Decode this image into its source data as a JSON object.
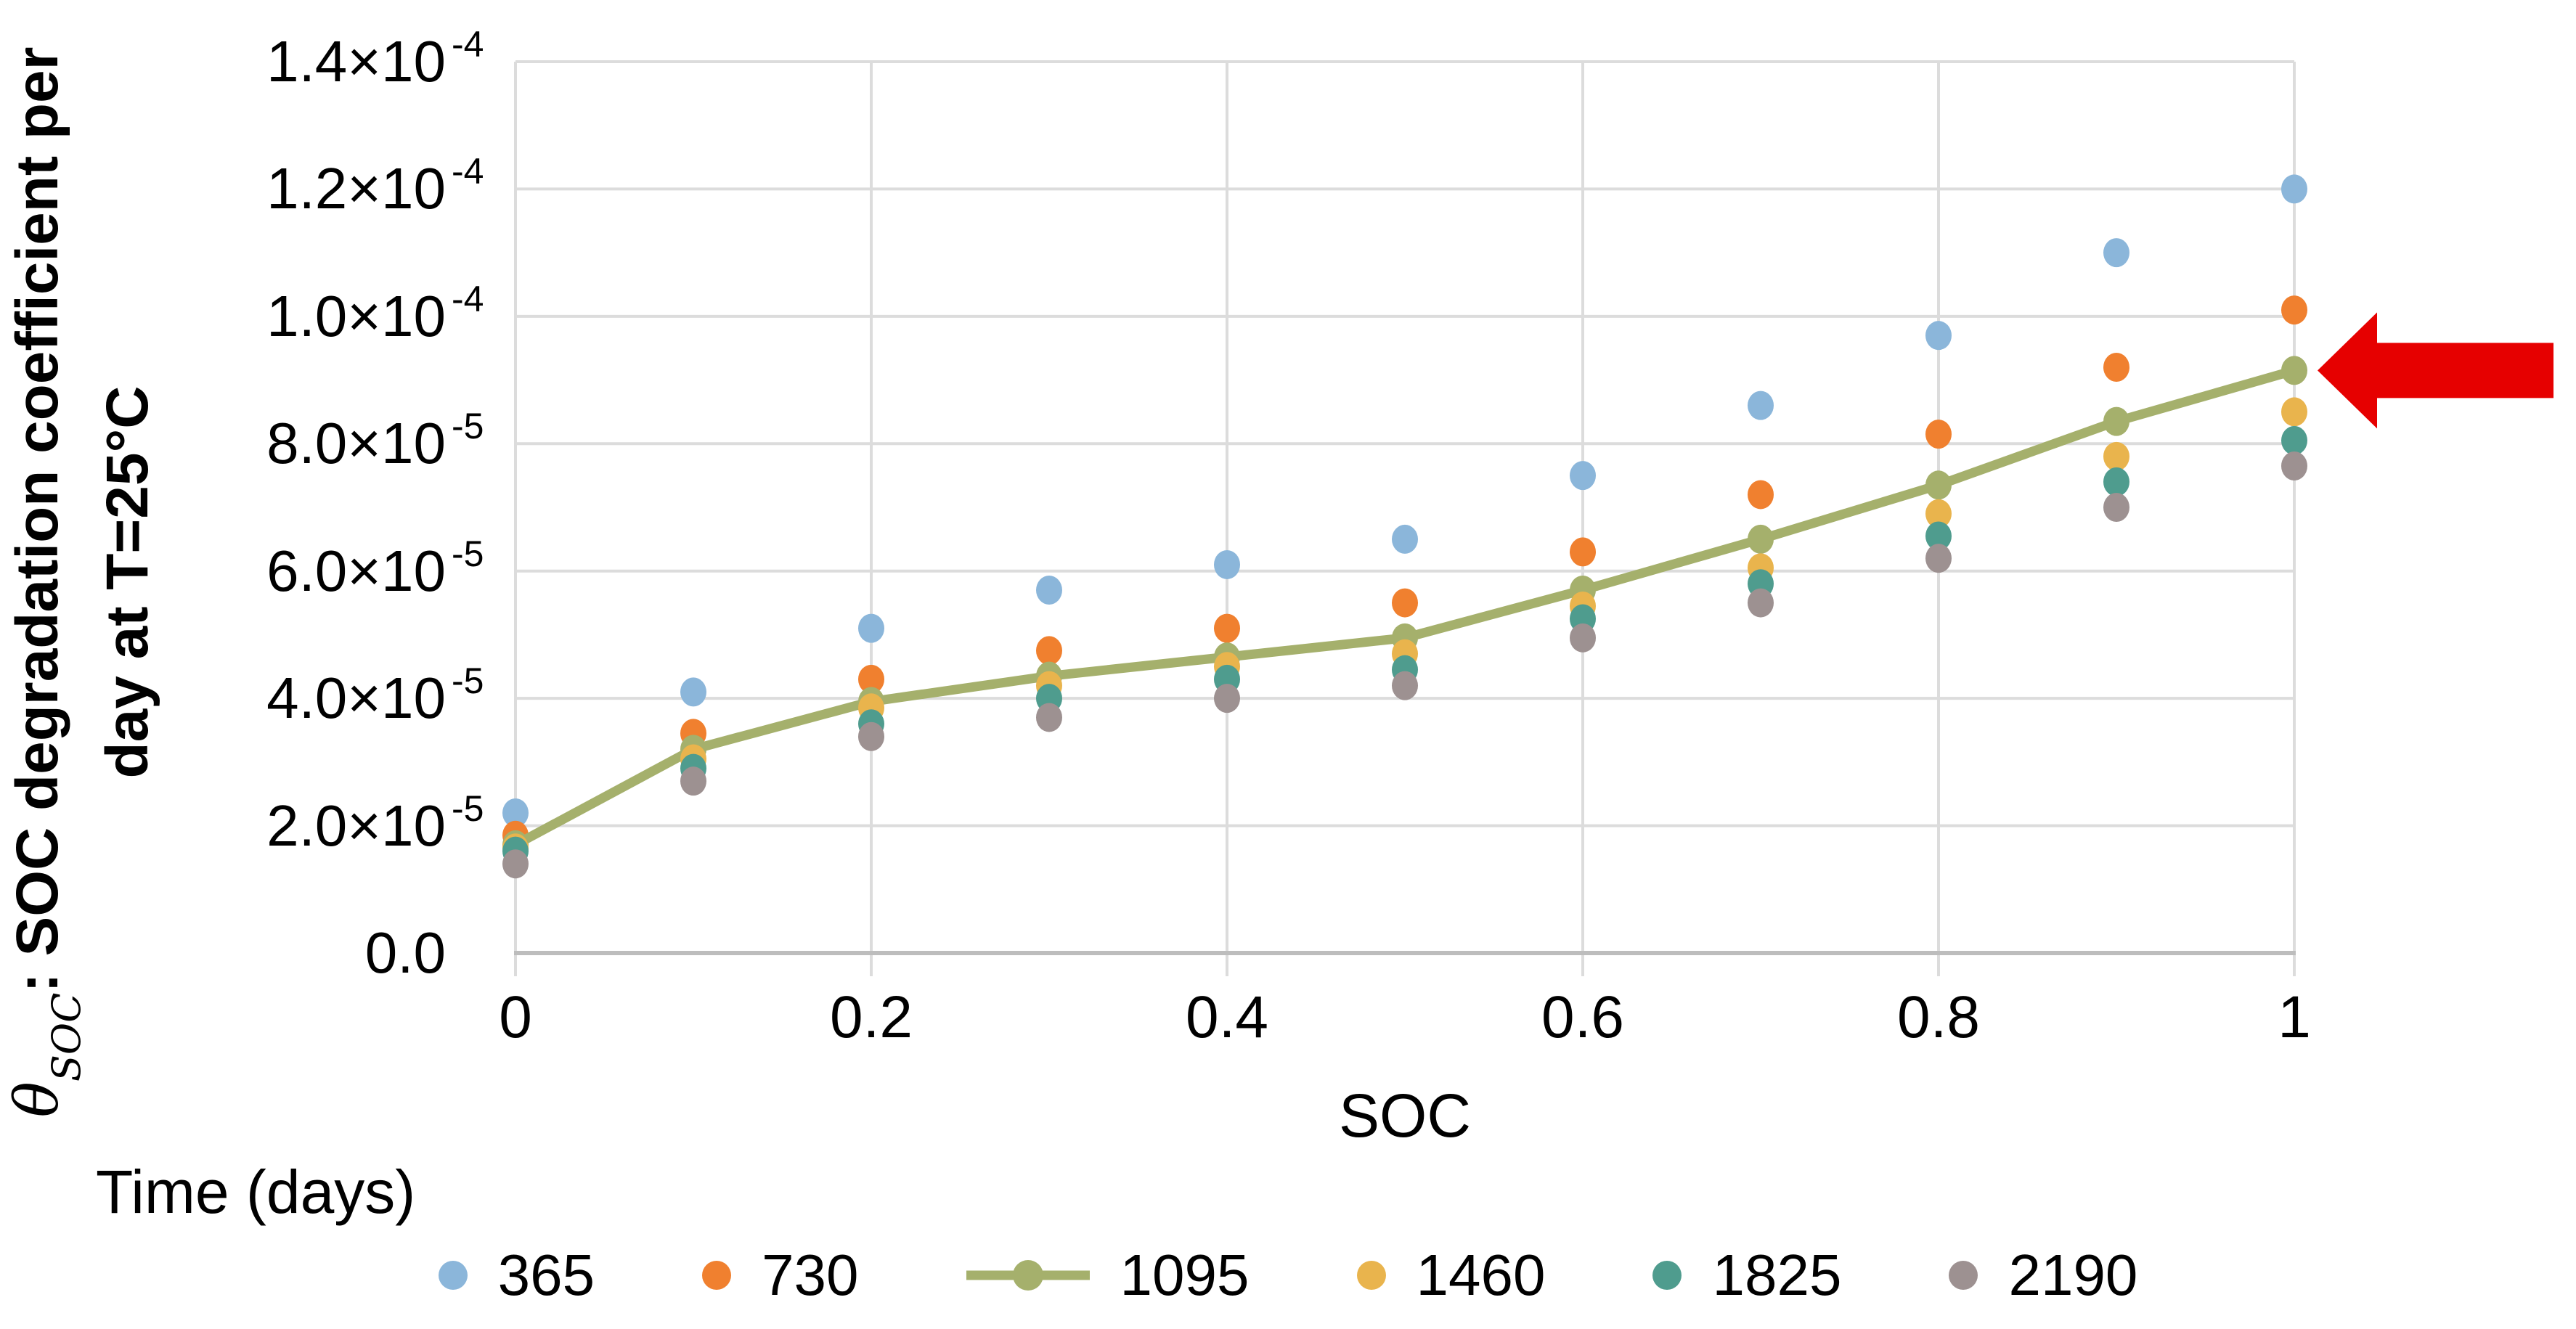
{
  "chart_data": {
    "type": "scatter",
    "title": "",
    "xlabel": "SOC",
    "ylabel": {
      "theta": "θ",
      "theta_sub": "SOC",
      "line1_rest": ": SOC degradation coefficient per",
      "line2": "day at T=25°C"
    },
    "legend_title": "Time (days)",
    "legend_position": "bottom",
    "grid": true,
    "xlim": [
      0,
      1
    ],
    "ylim": [
      0,
      0.00014
    ],
    "x_ticks": [
      {
        "label": "0",
        "value": 0
      },
      {
        "label": "0.2",
        "value": 0.2
      },
      {
        "label": "0.4",
        "value": 0.4
      },
      {
        "label": "0.6",
        "value": 0.6
      },
      {
        "label": "0.8",
        "value": 0.8
      },
      {
        "label": "1",
        "value": 1
      }
    ],
    "y_ticks": [
      {
        "mantissa": "0.0",
        "exp": "",
        "value": 0
      },
      {
        "mantissa": "2.0×10",
        "exp": "-5",
        "value": 2e-05
      },
      {
        "mantissa": "4.0×10",
        "exp": "-5",
        "value": 4e-05
      },
      {
        "mantissa": "6.0×10",
        "exp": "-5",
        "value": 6e-05
      },
      {
        "mantissa": "8.0×10",
        "exp": "-5",
        "value": 8e-05
      },
      {
        "mantissa": "1.0×10",
        "exp": "-4",
        "value": 0.0001
      },
      {
        "mantissa": "1.2×10",
        "exp": "-4",
        "value": 0.00012
      },
      {
        "mantissa": "1.4×10",
        "exp": "-4",
        "value": 0.00014
      }
    ],
    "x": [
      0,
      0.1,
      0.2,
      0.3,
      0.4,
      0.5,
      0.6,
      0.7,
      0.8,
      0.9,
      1
    ],
    "series": [
      {
        "name": "365",
        "color": "#8BB6DA",
        "marker": "dot",
        "line": false,
        "values": [
          2.2e-05,
          4.1e-05,
          5.1e-05,
          5.7e-05,
          6.1e-05,
          6.5e-05,
          7.5e-05,
          8.6e-05,
          9.7e-05,
          0.00011,
          0.00012
        ]
      },
      {
        "name": "730",
        "color": "#F0802F",
        "marker": "dot",
        "line": false,
        "values": [
          1.85e-05,
          3.45e-05,
          4.3e-05,
          4.75e-05,
          5.1e-05,
          5.5e-05,
          6.3e-05,
          7.2e-05,
          8.15e-05,
          9.2e-05,
          0.000101
        ]
      },
      {
        "name": "1095",
        "color": "#A5B06C",
        "marker": "line-dot",
        "line": true,
        "values": [
          1.7e-05,
          3.2e-05,
          3.95e-05,
          4.35e-05,
          4.65e-05,
          4.95e-05,
          5.7e-05,
          6.5e-05,
          7.35e-05,
          8.35e-05,
          9.15e-05
        ]
      },
      {
        "name": "1460",
        "color": "#E9B44D",
        "marker": "dot",
        "line": false,
        "values": [
          1.65e-05,
          3.05e-05,
          3.85e-05,
          4.2e-05,
          4.5e-05,
          4.7e-05,
          5.45e-05,
          6.05e-05,
          6.9e-05,
          7.8e-05,
          8.5e-05
        ]
      },
      {
        "name": "1825",
        "color": "#4F9C8E",
        "marker": "dot",
        "line": false,
        "values": [
          1.6e-05,
          2.9e-05,
          3.6e-05,
          4e-05,
          4.3e-05,
          4.45e-05,
          5.25e-05,
          5.8e-05,
          6.55e-05,
          7.4e-05,
          8.05e-05
        ]
      },
      {
        "name": "2190",
        "color": "#9D9191",
        "marker": "dot",
        "line": false,
        "values": [
          1.4e-05,
          2.7e-05,
          3.4e-05,
          3.7e-05,
          4e-05,
          4.2e-05,
          4.95e-05,
          5.5e-05,
          6.2e-05,
          7e-05,
          7.65e-05
        ]
      }
    ],
    "annotation": {
      "type": "arrow",
      "direction": "left",
      "color": "#E60000",
      "target_series": "1095",
      "target_x": 1
    },
    "colors": {
      "gridline": "#DCDCDC",
      "axis_line": "#BDBDBD",
      "text": "#000000"
    }
  }
}
